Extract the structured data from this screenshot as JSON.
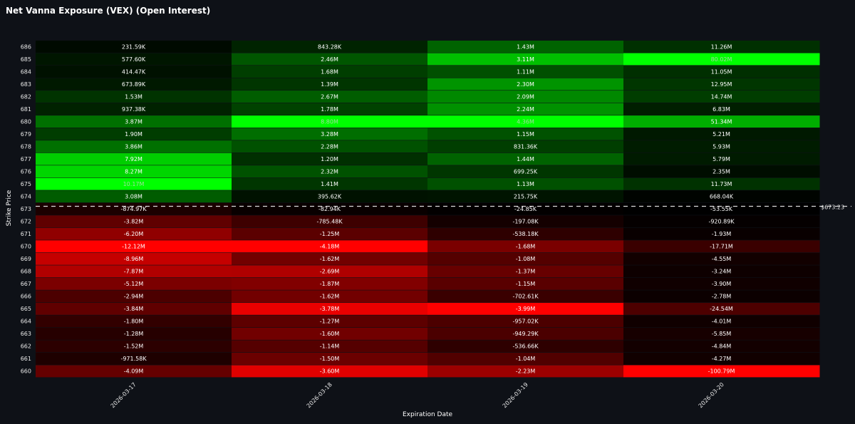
{
  "chart_data": {
    "type": "heatmap",
    "title": "Net Vanna Exposure (VEX) (Open Interest)",
    "xlabel": "Expiration Date",
    "ylabel": "Strike Price",
    "x": [
      "2026-03-17",
      "2026-03-18",
      "2026-03-19",
      "2026-03-20"
    ],
    "y": [
      686,
      685,
      684,
      683,
      682,
      681,
      680,
      679,
      678,
      677,
      676,
      675,
      674,
      673,
      672,
      671,
      670,
      669,
      668,
      667,
      666,
      665,
      664,
      663,
      662,
      661,
      660
    ],
    "values": [
      [
        231590,
        843280,
        1430000,
        11260000
      ],
      [
        577600,
        2460000,
        3110000,
        80020000
      ],
      [
        414470,
        1680000,
        1110000,
        11050000
      ],
      [
        673890,
        1390000,
        2300000,
        12950000
      ],
      [
        1530000,
        2670000,
        2090000,
        14740000
      ],
      [
        937380,
        1780000,
        2240000,
        6830000
      ],
      [
        3870000,
        8800000,
        4360000,
        51340000
      ],
      [
        1900000,
        3280000,
        1150000,
        5210000
      ],
      [
        3860000,
        2280000,
        831360,
        5930000
      ],
      [
        7920000,
        1200000,
        1440000,
        5790000
      ],
      [
        8270000,
        2320000,
        699250,
        2350000
      ],
      [
        10170000,
        1410000,
        1130000,
        11730000
      ],
      [
        3080000,
        395620,
        215750,
        668040
      ],
      [
        -874970,
        -82940,
        -24850,
        -53550
      ],
      [
        -3820000,
        -785480,
        -197080,
        -920890
      ],
      [
        -6200000,
        -1250000,
        -538180,
        -1930000
      ],
      [
        -12120000,
        -4180000,
        -1680000,
        -17710000
      ],
      [
        -8960000,
        -1620000,
        -1080000,
        -4550000
      ],
      [
        -7870000,
        -2690000,
        -1370000,
        -3240000
      ],
      [
        -5120000,
        -1870000,
        -1150000,
        -3900000
      ],
      [
        -2940000,
        -1620000,
        -702610,
        -2780000
      ],
      [
        -3840000,
        -3780000,
        -3990000,
        -24540000
      ],
      [
        -1800000,
        -1270000,
        -957020,
        -4010000
      ],
      [
        -1280000,
        -1600000,
        -949290,
        -5850000
      ],
      [
        -1520000,
        -1140000,
        -536660,
        -4840000
      ],
      [
        -971580,
        -1500000,
        -1040000,
        -4270000
      ],
      [
        -4090000,
        -3600000,
        -2230000,
        -100790000
      ]
    ],
    "labels": [
      [
        "231.59K",
        "843.28K",
        "1.43M",
        "11.26M"
      ],
      [
        "577.60K",
        "2.46M",
        "3.11M",
        "80.02M"
      ],
      [
        "414.47K",
        "1.68M",
        "1.11M",
        "11.05M"
      ],
      [
        "673.89K",
        "1.39M",
        "2.30M",
        "12.95M"
      ],
      [
        "1.53M",
        "2.67M",
        "2.09M",
        "14.74M"
      ],
      [
        "937.38K",
        "1.78M",
        "2.24M",
        "6.83M"
      ],
      [
        "3.87M",
        "8.80M",
        "4.36M",
        "51.34M"
      ],
      [
        "1.90M",
        "3.28M",
        "1.15M",
        "5.21M"
      ],
      [
        "3.86M",
        "2.28M",
        "831.36K",
        "5.93M"
      ],
      [
        "7.92M",
        "1.20M",
        "1.44M",
        "5.79M"
      ],
      [
        "8.27M",
        "2.32M",
        "699.25K",
        "2.35M"
      ],
      [
        "10.17M",
        "1.41M",
        "1.13M",
        "11.73M"
      ],
      [
        "3.08M",
        "395.62K",
        "215.75K",
        "668.04K"
      ],
      [
        "-874.97K",
        "-82.94K",
        "-24.85K",
        "-53.55K"
      ],
      [
        "-3.82M",
        "-785.48K",
        "-197.08K",
        "-920.89K"
      ],
      [
        "-6.20M",
        "-1.25M",
        "-538.18K",
        "-1.93M"
      ],
      [
        "-12.12M",
        "-4.18M",
        "-1.68M",
        "-17.71M"
      ],
      [
        "-8.96M",
        "-1.62M",
        "-1.08M",
        "-4.55M"
      ],
      [
        "-7.87M",
        "-2.69M",
        "-1.37M",
        "-3.24M"
      ],
      [
        "-5.12M",
        "-1.87M",
        "-1.15M",
        "-3.90M"
      ],
      [
        "-2.94M",
        "-1.62M",
        "-702.61K",
        "-2.78M"
      ],
      [
        "-3.84M",
        "-3.78M",
        "-3.99M",
        "-24.54M"
      ],
      [
        "-1.80M",
        "-1.27M",
        "-957.02K",
        "-4.01M"
      ],
      [
        "-1.28M",
        "-1.60M",
        "-949.29K",
        "-5.85M"
      ],
      [
        "-1.52M",
        "-1.14M",
        "-536.66K",
        "-4.84M"
      ],
      [
        "-971.58K",
        "-1.50M",
        "-1.04M",
        "-4.27M"
      ],
      [
        "-4.09M",
        "-3.60M",
        "-2.23M",
        "-100.79M"
      ]
    ],
    "spot_line": {
      "value": 673.23,
      "label": "$673.23"
    },
    "color_scale": {
      "negative": "#ff0000",
      "zero": "#000000",
      "positive": "#00ff00"
    },
    "grid": false,
    "legend": "none"
  }
}
